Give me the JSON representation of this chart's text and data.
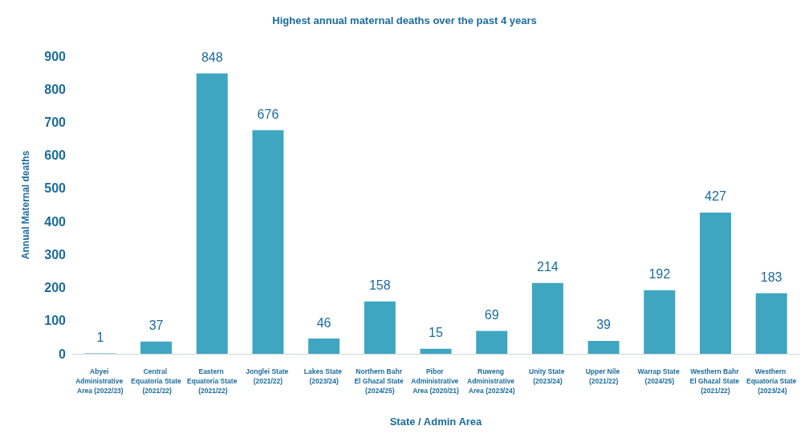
{
  "chart_data": {
    "type": "bar",
    "title": "Highest annual maternal deaths over the past 4 years",
    "xlabel": "State / Admin Area",
    "ylabel": "Annual Maternal deaths",
    "categories": [
      "Abyei Administrative Area (2022/23)",
      "Central Equatoria State (2021/22)",
      "Eastern Equatoria State (2021/22)",
      "Jonglei State (2021/22)",
      "Lakes State (2023/24)",
      "Northern Bahr El Ghazal State (2024/25)",
      "Pibor Administrative Area (2020/21)",
      "Ruweng Administrative Area (2023/24)",
      "Unity State (2023/24)",
      "Upper Nile (2021/22)",
      "Warrap State (2024/25)",
      "Westhern Bahr El Ghazal State (2021/22)",
      "Westhern Equatoria State (2023/24)"
    ],
    "values": [
      1,
      37,
      848,
      676,
      46,
      158,
      15,
      69,
      214,
      39,
      192,
      427,
      183
    ],
    "color": "#3fa6c2",
    "ylim": [
      0,
      900
    ],
    "yticks": [
      0,
      100,
      200,
      300,
      400,
      500,
      600,
      700,
      800,
      900
    ],
    "grid": false,
    "data_labels": true
  }
}
